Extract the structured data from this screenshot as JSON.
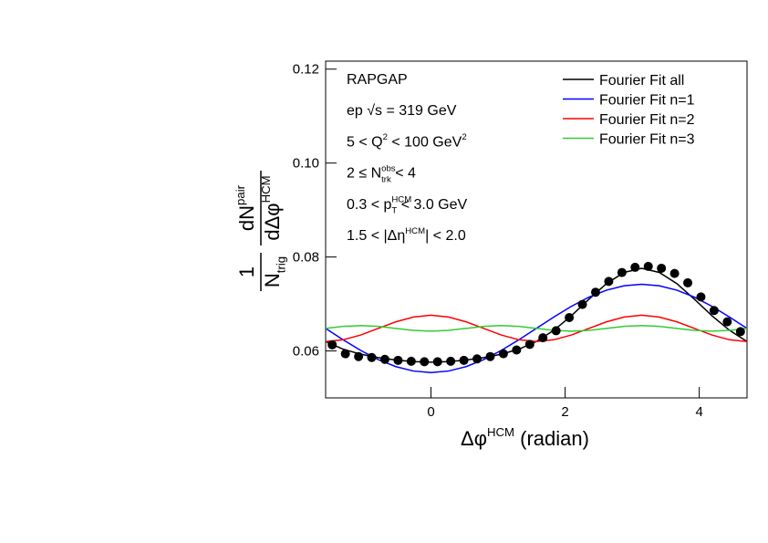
{
  "chart_data": {
    "type": "line",
    "x_label": [
      {
        "text": "Δφ"
      },
      {
        "sup": "HCM"
      },
      {
        "text": " (radian)"
      }
    ],
    "y_label": {
      "left": {
        "num": [
          {
            "text": "1"
          }
        ],
        "den": [
          {
            "text": "N"
          },
          {
            "sub": "trig"
          }
        ]
      },
      "right": {
        "num": [
          {
            "text": "dN"
          },
          {
            "sup": "pair"
          }
        ],
        "den": [
          {
            "text": "dΔφ"
          },
          {
            "sup": "HCM"
          }
        ]
      }
    },
    "annotations": [
      [
        {
          "text": "RAPGAP"
        }
      ],
      [
        {
          "text": "ep √s = 319 GeV"
        }
      ],
      [
        {
          "text": "5 < Q"
        },
        {
          "sup": "2"
        },
        {
          "text": " < 100 GeV"
        },
        {
          "sup": "2"
        }
      ],
      [
        {
          "text": "2 ≤ N"
        },
        {
          "sup": "obs"
        },
        {
          "sub": "trk"
        },
        {
          "text": " < 4"
        }
      ],
      [
        {
          "text": "0.3 < p"
        },
        {
          "sup": "HCM"
        },
        {
          "sub": "T"
        },
        {
          "text": " < 3.0 GeV"
        }
      ],
      [
        {
          "text": "1.5 < |Δη"
        },
        {
          "sup": "HCM"
        },
        {
          "text": "| < 2.0"
        }
      ]
    ],
    "xlim": [
      -1.5708,
      4.7124
    ],
    "ylim": [
      0.05,
      0.1217
    ],
    "xticks": [
      0,
      2,
      4
    ],
    "yticks": [
      0.06,
      0.08,
      {
        "value": 0.1,
        "label": "0.10"
      },
      0.12
    ],
    "legend": "top-right",
    "x": [
      -1.5708,
      -1.309,
      -1.0472,
      -0.7854,
      -0.5236,
      -0.2618,
      0,
      0.2618,
      0.5236,
      0.7854,
      1.0472,
      1.309,
      1.5708,
      1.8326,
      2.0944,
      2.3562,
      2.618,
      2.8798,
      3.1416,
      3.4034,
      3.6652,
      3.927,
      4.1888,
      4.4506,
      4.7124
    ],
    "series": [
      {
        "name": "Fourier Fit all",
        "color": "#000000",
        "values": [
          0.062,
          0.06037,
          0.0593,
          0.05857,
          0.05806,
          0.05772,
          0.0576,
          0.05772,
          0.05806,
          0.05857,
          0.0593,
          0.06037,
          0.062,
          0.06439,
          0.0675,
          0.07103,
          0.07434,
          0.07672,
          0.0776,
          0.07672,
          0.07434,
          0.07103,
          0.0675,
          0.06439,
          0.062
        ]
      },
      {
        "name": "Fourier Fit n=1",
        "color": "#0000ff",
        "values": [
          0.0648,
          0.06237,
          0.0601,
          0.05815,
          0.05666,
          0.05572,
          0.0554,
          0.05572,
          0.05666,
          0.05815,
          0.0601,
          0.06237,
          0.0648,
          0.06723,
          0.0695,
          0.07145,
          0.07294,
          0.07388,
          0.0742,
          0.07388,
          0.07294,
          0.07145,
          0.0695,
          0.06723,
          0.0648
        ]
      },
      {
        "name": "Fourier Fit n=2",
        "color": "#ff0000",
        "values": [
          0.062,
          0.06238,
          0.0634,
          0.0648,
          0.0662,
          0.06722,
          0.0676,
          0.06722,
          0.0662,
          0.0648,
          0.0634,
          0.06238,
          0.062,
          0.06238,
          0.0634,
          0.0648,
          0.0662,
          0.06722,
          0.0676,
          0.06722,
          0.0662,
          0.0648,
          0.0634,
          0.06238,
          0.062
        ]
      },
      {
        "name": "Fourier Fit n=3",
        "color": "#33cc33",
        "values": [
          0.0648,
          0.06522,
          0.0654,
          0.06522,
          0.0648,
          0.06438,
          0.0642,
          0.06438,
          0.0648,
          0.06522,
          0.0654,
          0.06522,
          0.0648,
          0.06438,
          0.0642,
          0.06438,
          0.0648,
          0.06522,
          0.0654,
          0.06522,
          0.0648,
          0.06438,
          0.0642,
          0.06438,
          0.0648
        ]
      }
    ],
    "points": {
      "color": "#000000",
      "x": [
        -1.4726,
        -1.2763,
        -1.0799,
        -0.8836,
        -0.6872,
        -0.4909,
        -0.2945,
        -0.0982,
        0.0982,
        0.2945,
        0.4909,
        0.6872,
        0.8836,
        1.0799,
        1.2763,
        1.4726,
        1.669,
        1.8653,
        2.0617,
        2.258,
        2.4544,
        2.6507,
        2.8471,
        3.0434,
        3.2398,
        3.4361,
        3.6325,
        3.8288,
        4.0252,
        4.2215,
        4.4179,
        4.6142
      ],
      "values": [
        0.0613,
        0.0594,
        0.0588,
        0.0586,
        0.0582,
        0.058,
        0.0578,
        0.0577,
        0.0577,
        0.0578,
        0.058,
        0.0583,
        0.0588,
        0.0594,
        0.0602,
        0.0614,
        0.0628,
        0.0643,
        0.0671,
        0.0699,
        0.0725,
        0.0748,
        0.0767,
        0.0778,
        0.078,
        0.0776,
        0.0765,
        0.0745,
        0.0715,
        0.0686,
        0.0662,
        0.0641
      ]
    }
  }
}
